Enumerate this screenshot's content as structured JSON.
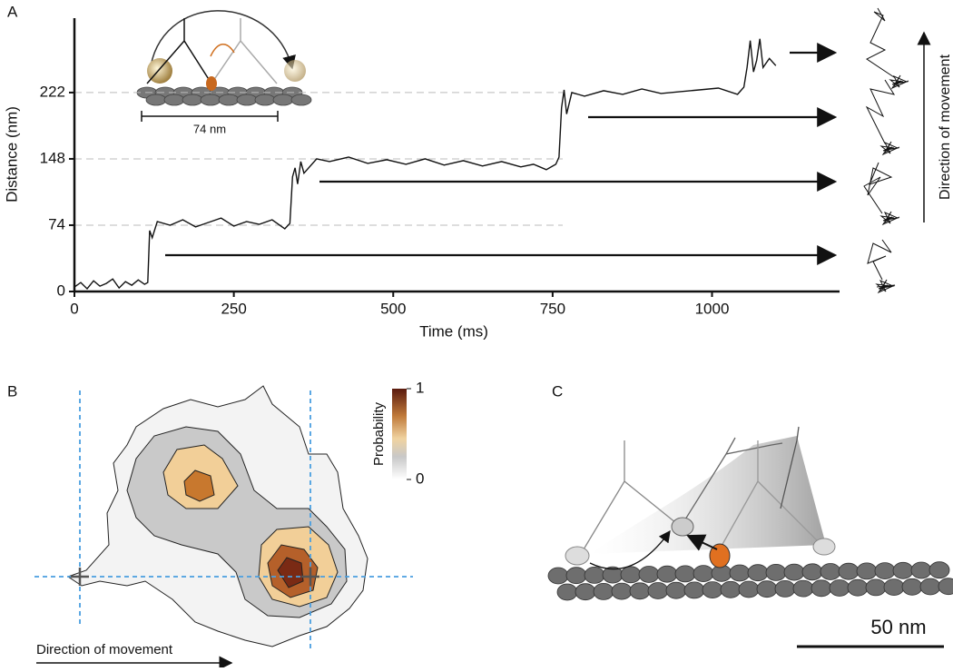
{
  "panel_labels": [
    "A",
    "B",
    "C"
  ],
  "chart_data": [
    {
      "type": "line",
      "xlabel": "Time (ms)",
      "ylabel": "Distance (nm)",
      "xlim": [
        0,
        1200
      ],
      "ylim": [
        0,
        305
      ],
      "xticks": [
        0,
        250,
        500,
        750,
        1000
      ],
      "yticks": [
        0,
        74,
        148,
        222
      ],
      "grid": "dashed",
      "color": "#111111",
      "annotations": [
        "74 nm",
        "Direction of movement"
      ],
      "x": [
        0,
        10,
        20,
        30,
        40,
        50,
        60,
        70,
        80,
        90,
        100,
        110,
        115,
        118,
        122,
        130,
        150,
        170,
        190,
        210,
        230,
        250,
        270,
        290,
        310,
        330,
        338,
        342,
        346,
        350,
        355,
        360,
        380,
        400,
        430,
        460,
        490,
        520,
        550,
        580,
        610,
        640,
        670,
        700,
        720,
        740,
        755,
        760,
        764,
        768,
        772,
        780,
        800,
        830,
        860,
        890,
        920,
        950,
        980,
        1010,
        1040,
        1050,
        1055,
        1060,
        1065,
        1070,
        1075,
        1080,
        1090,
        1100
      ],
      "values": [
        5,
        10,
        3,
        12,
        6,
        9,
        14,
        4,
        11,
        7,
        13,
        8,
        10,
        68,
        60,
        78,
        74,
        80,
        72,
        77,
        82,
        73,
        78,
        75,
        80,
        70,
        76,
        128,
        138,
        120,
        145,
        132,
        148,
        145,
        150,
        143,
        147,
        142,
        148,
        141,
        146,
        140,
        145,
        139,
        142,
        136,
        142,
        150,
        205,
        225,
        198,
        222,
        218,
        224,
        220,
        226,
        221,
        223,
        225,
        227,
        220,
        228,
        250,
        280,
        245,
        258,
        282,
        250,
        260,
        252
      ]
    },
    {
      "type": "contour",
      "annotation": "Direction of movement",
      "colorbar": {
        "label": "Probability",
        "lim": [
          0,
          1
        ],
        "ticks": [
          0,
          1
        ]
      }
    }
  ],
  "panel_c": {
    "scale_bar": "50 nm"
  }
}
